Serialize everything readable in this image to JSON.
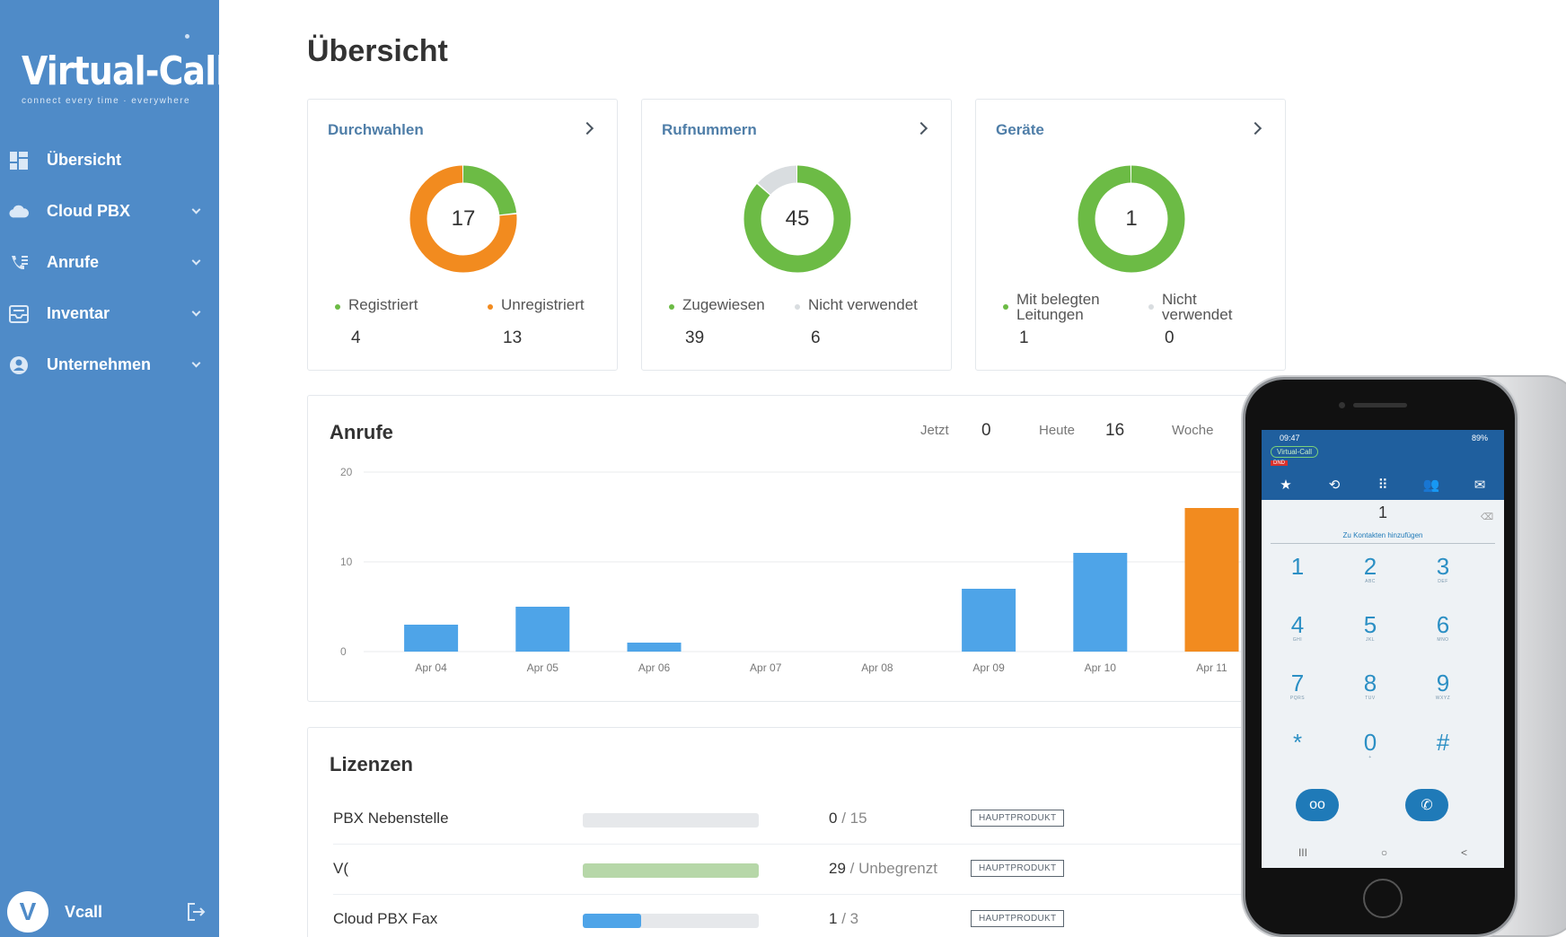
{
  "brand": {
    "name": "Virtual-Call",
    "tagline": "connect every time · everywhere"
  },
  "sidebar": {
    "items": [
      {
        "label": "Übersicht",
        "icon": "dashboard-icon",
        "has_children": false
      },
      {
        "label": "Cloud PBX",
        "icon": "cloud-icon",
        "has_children": true
      },
      {
        "label": "Anrufe",
        "icon": "phone-list-icon",
        "has_children": true
      },
      {
        "label": "Inventar",
        "icon": "inventory-icon",
        "has_children": true
      },
      {
        "label": "Unternehmen",
        "icon": "company-icon",
        "has_children": true
      }
    ],
    "user": {
      "initial": "V",
      "name": "Vcall"
    }
  },
  "page": {
    "title": "Übersicht"
  },
  "colors": {
    "sidebar": "#4f8bc8",
    "green": "#6cbb45",
    "orange": "#f28b1f",
    "grey": "#d9dde0",
    "bar_blue": "#4ea4e8",
    "bar_orange": "#f28b1f"
  },
  "stats": [
    {
      "title": "Durchwahlen",
      "total": "17",
      "legend": [
        {
          "label": "Registriert",
          "value": "4",
          "color": "#6cbb45"
        },
        {
          "label": "Unregistriert",
          "value": "13",
          "color": "#f28b1f"
        }
      ]
    },
    {
      "title": "Rufnummern",
      "total": "45",
      "legend": [
        {
          "label": "Zugewiesen",
          "value": "39",
          "color": "#6cbb45"
        },
        {
          "label": "Nicht verwendet",
          "value": "6",
          "color": "#d9dde0"
        }
      ]
    },
    {
      "title": "Geräte",
      "total": "1",
      "legend": [
        {
          "label": "Mit belegten Leitungen",
          "value": "1",
          "color": "#6cbb45"
        },
        {
          "label": "Nicht verwendet",
          "value": "0",
          "color": "#d9dde0"
        }
      ]
    }
  ],
  "calls": {
    "title": "Anrufe",
    "kpis": [
      {
        "label": "Jetzt",
        "value": "0"
      },
      {
        "label": "Heute",
        "value": "16"
      },
      {
        "label": "Woche",
        "value": ""
      }
    ]
  },
  "chart_data": {
    "type": "bar",
    "categories": [
      "Apr 04",
      "Apr 05",
      "Apr 06",
      "Apr 07",
      "Apr 08",
      "Apr 09",
      "Apr 10",
      "Apr 11"
    ],
    "values": [
      3,
      5,
      1,
      0,
      0,
      7,
      11,
      16
    ],
    "highlight_index": 7,
    "yticks": [
      "0",
      "10",
      "20"
    ],
    "ylim": [
      0,
      20
    ],
    "grid": true,
    "title": "Anrufe"
  },
  "licenses": {
    "title": "Lizenzen",
    "rows": [
      {
        "name": "PBX Nebenstelle",
        "used": "0",
        "limit": "15",
        "fill": 0,
        "fill_color": "#e6e8eb",
        "badge": "HAUPTPRODUKT"
      },
      {
        "name": "V(",
        "used": "29",
        "limit": "Unbegrenzt",
        "fill": 1,
        "fill_color": "#b6d7a8",
        "badge": "HAUPTPRODUKT"
      },
      {
        "name": "Cloud PBX Fax",
        "used": "1",
        "limit": "3",
        "fill": 0.333,
        "fill_color": "#4ea4e8",
        "badge": "HAUPTPRODUKT"
      }
    ]
  },
  "phone": {
    "time": "09:47",
    "battery": "89%",
    "brand_pill": "Virtual-Call",
    "dnd": "DND",
    "tabs": [
      "★",
      "⟲",
      "⠿",
      "👥",
      "✉"
    ],
    "display": "1",
    "hint": "Zu Kontakten hinzufügen",
    "keys": [
      {
        "d": "1",
        "s": ""
      },
      {
        "d": "2",
        "s": "ABC"
      },
      {
        "d": "3",
        "s": "DEF"
      },
      {
        "d": "4",
        "s": "GHI"
      },
      {
        "d": "5",
        "s": "JKL"
      },
      {
        "d": "6",
        "s": "MNO"
      },
      {
        "d": "7",
        "s": "PQRS"
      },
      {
        "d": "8",
        "s": "TUV"
      },
      {
        "d": "9",
        "s": "WXYZ"
      },
      {
        "d": "*",
        "s": ""
      },
      {
        "d": "0",
        "s": "+"
      },
      {
        "d": "#",
        "s": ""
      }
    ],
    "voicemail": "oo",
    "call": "✆",
    "nav": [
      "III",
      "○",
      "<"
    ]
  }
}
